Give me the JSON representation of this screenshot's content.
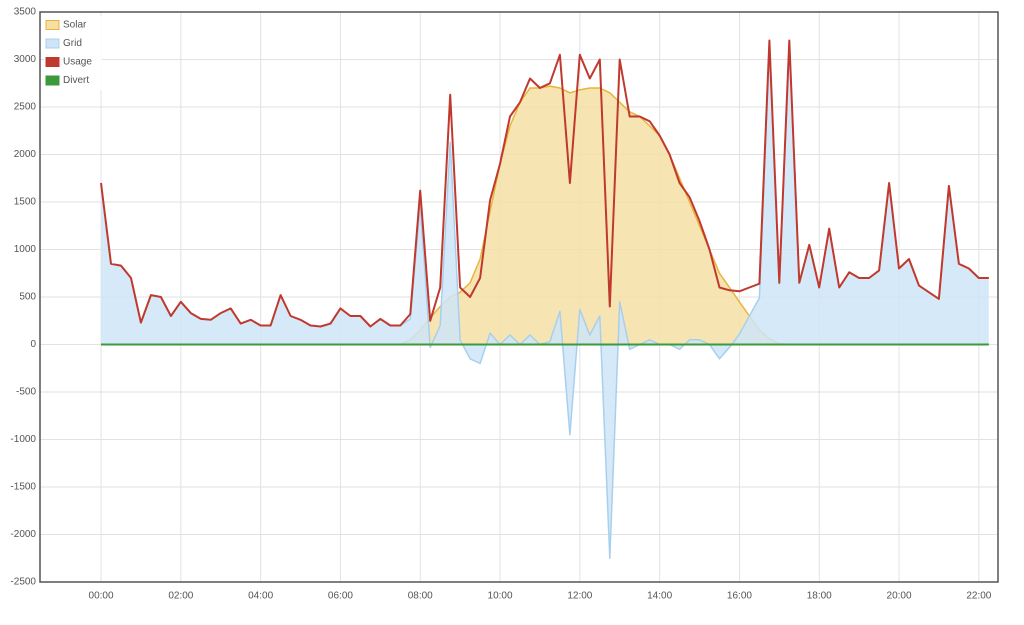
{
  "chart_data": {
    "type": "area",
    "x": [
      0,
      0.25,
      0.5,
      0.75,
      1,
      1.25,
      1.5,
      1.75,
      2,
      2.25,
      2.5,
      2.75,
      3,
      3.25,
      3.5,
      3.75,
      4,
      4.25,
      4.5,
      4.75,
      5,
      5.25,
      5.5,
      5.75,
      6,
      6.25,
      6.5,
      6.75,
      7,
      7.25,
      7.5,
      7.75,
      8,
      8.25,
      8.5,
      8.75,
      9,
      9.25,
      9.5,
      9.75,
      10,
      10.25,
      10.5,
      10.75,
      11,
      11.25,
      11.5,
      11.75,
      12,
      12.25,
      12.5,
      12.75,
      13,
      13.25,
      13.5,
      13.75,
      14,
      14.25,
      14.5,
      14.75,
      15,
      15.25,
      15.5,
      15.75,
      16,
      16.25,
      16.5,
      16.75,
      17,
      17.25,
      17.5,
      17.75,
      18,
      18.25,
      18.5,
      18.75,
      19,
      19.25,
      19.5,
      19.75,
      20,
      20.25,
      20.5,
      20.75,
      21,
      21.25,
      21.5,
      21.75,
      22,
      22.25
    ],
    "series": [
      {
        "name": "Solar",
        "color": "#e8b53a",
        "fill": "#f6dfa6",
        "values": [
          0,
          0,
          0,
          0,
          0,
          0,
          0,
          0,
          0,
          0,
          0,
          0,
          0,
          0,
          0,
          0,
          0,
          0,
          0,
          0,
          0,
          0,
          0,
          0,
          0,
          0,
          0,
          0,
          0,
          0,
          0,
          50,
          150,
          280,
          400,
          500,
          550,
          650,
          900,
          1400,
          1900,
          2300,
          2550,
          2700,
          2700,
          2720,
          2700,
          2650,
          2680,
          2700,
          2700,
          2650,
          2550,
          2450,
          2400,
          2300,
          2200,
          2000,
          1750,
          1500,
          1250,
          1000,
          750,
          600,
          450,
          300,
          150,
          60,
          10,
          0,
          0,
          0,
          0,
          0,
          0,
          0,
          0,
          0,
          0,
          0,
          0,
          0,
          0,
          0,
          0,
          0,
          0,
          0,
          0,
          0
        ]
      },
      {
        "name": "Grid",
        "color": "#a8d0ec",
        "fill": "#cfe5f7",
        "values": [
          1700,
          850,
          830,
          700,
          230,
          520,
          500,
          300,
          450,
          330,
          270,
          260,
          330,
          380,
          220,
          260,
          200,
          200,
          520,
          300,
          260,
          200,
          190,
          220,
          380,
          300,
          300,
          190,
          270,
          200,
          200,
          270,
          1470,
          -30,
          200,
          2130,
          50,
          -150,
          -200,
          120,
          0,
          100,
          0,
          100,
          0,
          30,
          350,
          -950,
          370,
          100,
          300,
          -2250,
          450,
          -50,
          0,
          50,
          0,
          0,
          -50,
          50,
          50,
          0,
          -150,
          -30,
          110,
          300,
          490,
          3140,
          640,
          3200,
          650,
          1050,
          600,
          1220,
          600,
          760,
          700,
          700,
          780,
          1700,
          800,
          900,
          620,
          550,
          480,
          1670,
          850,
          800,
          700,
          700
        ]
      },
      {
        "name": "Usage",
        "color": "#c0392f",
        "values": [
          1700,
          850,
          830,
          700,
          230,
          520,
          500,
          300,
          450,
          330,
          270,
          260,
          330,
          380,
          220,
          260,
          200,
          200,
          520,
          300,
          260,
          200,
          190,
          220,
          380,
          300,
          300,
          190,
          270,
          200,
          200,
          320,
          1620,
          250,
          600,
          2630,
          600,
          500,
          700,
          1520,
          1900,
          2400,
          2550,
          2800,
          2700,
          2750,
          3050,
          1700,
          3050,
          2800,
          3000,
          400,
          3000,
          2400,
          2400,
          2350,
          2200,
          2000,
          1700,
          1550,
          1300,
          1000,
          600,
          570,
          560,
          600,
          640,
          3200,
          650,
          3200,
          650,
          1050,
          600,
          1220,
          600,
          760,
          700,
          700,
          780,
          1700,
          800,
          900,
          620,
          550,
          480,
          1670,
          850,
          800,
          700,
          700
        ]
      },
      {
        "name": "Divert",
        "color": "#3c9a3c",
        "values": [
          0,
          0,
          0,
          0,
          0,
          0,
          0,
          0,
          0,
          0,
          0,
          0,
          0,
          0,
          0,
          0,
          0,
          0,
          0,
          0,
          0,
          0,
          0,
          0,
          0,
          0,
          0,
          0,
          0,
          0,
          0,
          0,
          0,
          0,
          0,
          0,
          0,
          0,
          0,
          0,
          0,
          0,
          0,
          0,
          0,
          0,
          0,
          0,
          0,
          0,
          0,
          0,
          0,
          0,
          0,
          0,
          0,
          0,
          0,
          0,
          0,
          0,
          0,
          0,
          0,
          0,
          0,
          0,
          0,
          0,
          0,
          0,
          0,
          0,
          0,
          0,
          0,
          0,
          0,
          0,
          0,
          0,
          0,
          0,
          0,
          0,
          0,
          0,
          0,
          0
        ]
      }
    ],
    "xlim": [
      -1.53,
      22.48
    ],
    "xticks": [
      {
        "value": 0,
        "label": "00:00"
      },
      {
        "value": 2,
        "label": "02:00"
      },
      {
        "value": 4,
        "label": "04:00"
      },
      {
        "value": 6,
        "label": "06:00"
      },
      {
        "value": 8,
        "label": "08:00"
      },
      {
        "value": 10,
        "label": "10:00"
      },
      {
        "value": 12,
        "label": "12:00"
      },
      {
        "value": 14,
        "label": "14:00"
      },
      {
        "value": 16,
        "label": "16:00"
      },
      {
        "value": 18,
        "label": "18:00"
      },
      {
        "value": 20,
        "label": "20:00"
      },
      {
        "value": 22,
        "label": "22:00"
      }
    ],
    "ylim": [
      -2500,
      3500
    ],
    "yticks": [
      -2500,
      -2000,
      -1500,
      -1000,
      -500,
      0,
      500,
      1000,
      1500,
      2000,
      2500,
      3000,
      3500
    ],
    "grid": true,
    "legend": "top-left"
  }
}
